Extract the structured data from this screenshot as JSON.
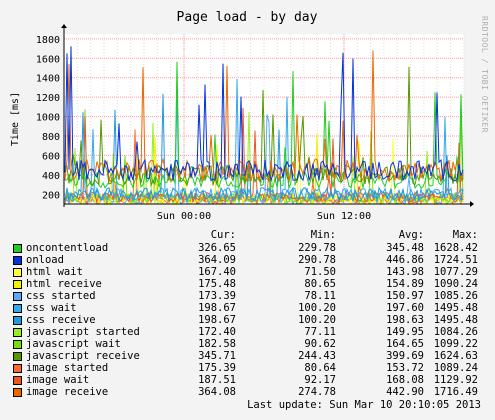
{
  "watermark": "RRDTOOL / TOBI OETIKER",
  "chart_data": {
    "type": "line",
    "title": "Page load - by day",
    "ylabel": "Time [ms]",
    "xlabel": "",
    "ylim": [
      100,
      1850
    ],
    "yticks": [
      200,
      400,
      600,
      800,
      1000,
      1200,
      1400,
      1600,
      1800
    ],
    "xticks": [
      "Sun 00:00",
      "Sun 12:00"
    ],
    "grid": true,
    "legend_position": "bottom",
    "columns": [
      "Cur:",
      "Min:",
      "Avg:",
      "Max:"
    ],
    "series": [
      {
        "name": "oncontentload",
        "color": "#22cc22",
        "cur": "326.65",
        "min": "229.78",
        "avg": "345.48",
        "max": "1628.42"
      },
      {
        "name": "onload",
        "color": "#0033dd",
        "cur": "364.09",
        "min": "290.78",
        "avg": "446.86",
        "max": "1724.51"
      },
      {
        "name": "html wait",
        "color": "#ffff44",
        "cur": "167.40",
        "min": "71.50",
        "avg": "143.98",
        "max": "1077.29"
      },
      {
        "name": "html receive",
        "color": "#f2f200",
        "cur": "175.48",
        "min": "80.65",
        "avg": "154.89",
        "max": "1090.24"
      },
      {
        "name": "css started",
        "color": "#55aaff",
        "cur": "173.39",
        "min": "78.11",
        "avg": "150.97",
        "max": "1085.26"
      },
      {
        "name": "css wait",
        "color": "#33aaee",
        "cur": "198.67",
        "min": "100.20",
        "avg": "197.60",
        "max": "1495.48"
      },
      {
        "name": "css receive",
        "color": "#2299dd",
        "cur": "198.67",
        "min": "100.20",
        "avg": "198.63",
        "max": "1495.48"
      },
      {
        "name": "javascript started",
        "color": "#99ee22",
        "cur": "172.40",
        "min": "77.11",
        "avg": "149.95",
        "max": "1084.26"
      },
      {
        "name": "javascript wait",
        "color": "#77dd11",
        "cur": "182.58",
        "min": "90.62",
        "avg": "164.65",
        "max": "1099.22"
      },
      {
        "name": "javascript receive",
        "color": "#559900",
        "cur": "345.71",
        "min": "244.43",
        "avg": "399.69",
        "max": "1624.63"
      },
      {
        "name": "image started",
        "color": "#ff6633",
        "cur": "175.39",
        "min": "80.64",
        "avg": "153.72",
        "max": "1089.24"
      },
      {
        "name": "image wait",
        "color": "#ee5522",
        "cur": "187.51",
        "min": "92.17",
        "avg": "168.08",
        "max": "1129.92"
      },
      {
        "name": "image receive",
        "color": "#ee6600",
        "cur": "364.08",
        "min": "274.78",
        "avg": "442.90",
        "max": "1716.49"
      }
    ]
  },
  "last_update": "Last update: Sun Mar 10 20:10:05 2013"
}
